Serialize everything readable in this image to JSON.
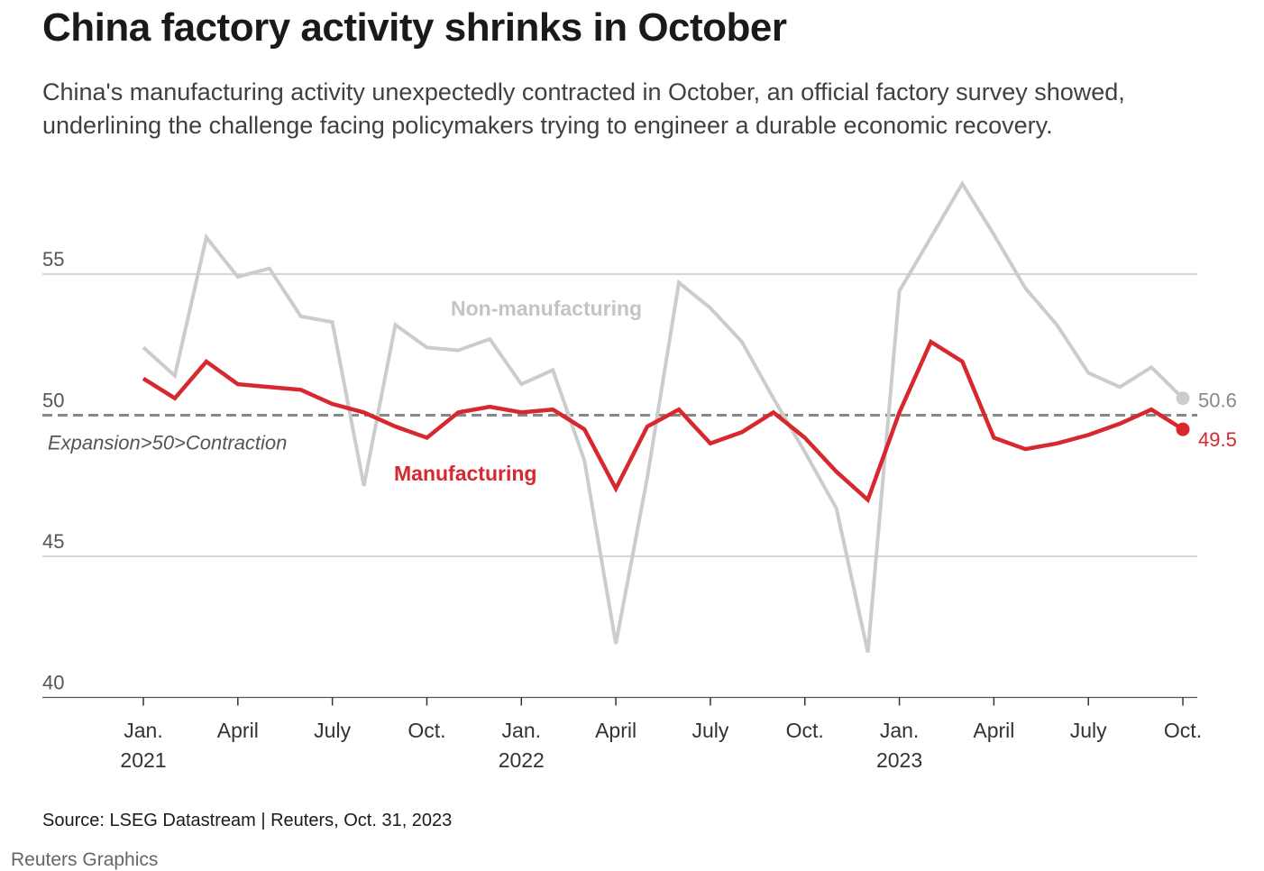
{
  "header": {
    "title": "China factory activity shrinks in October",
    "subtitle_lines": [
      "China's manufacturing activity unexpectedly contracted in October, an official factory survey showed,",
      "underlining the challenge facing policymakers trying to engineer a durable economic recovery."
    ]
  },
  "footer": {
    "source": "Source: LSEG Datastream | Reuters, Oct. 31, 2023",
    "credit": "Reuters Graphics"
  },
  "chart_data": {
    "type": "line",
    "title": "China factory activity shrinks in October",
    "x_labels": [
      "2021-01",
      "2021-02",
      "2021-03",
      "2021-04",
      "2021-05",
      "2021-06",
      "2021-07",
      "2021-08",
      "2021-09",
      "2021-10",
      "2021-11",
      "2021-12",
      "2022-01",
      "2022-02",
      "2022-03",
      "2022-04",
      "2022-05",
      "2022-06",
      "2022-07",
      "2022-08",
      "2022-09",
      "2022-10",
      "2022-11",
      "2022-12",
      "2023-01",
      "2023-02",
      "2023-03",
      "2023-04",
      "2023-05",
      "2023-06",
      "2023-07",
      "2023-08",
      "2023-09",
      "2023-10"
    ],
    "series": [
      {
        "name": "Non-manufacturing",
        "color": "#cccccc",
        "values": [
          52.4,
          51.4,
          56.3,
          54.9,
          55.2,
          53.5,
          53.3,
          47.5,
          53.2,
          52.4,
          52.3,
          52.7,
          51.1,
          51.6,
          48.4,
          41.9,
          47.8,
          54.7,
          53.8,
          52.6,
          50.6,
          48.7,
          46.7,
          41.6,
          54.4,
          56.3,
          58.2,
          56.4,
          54.5,
          53.2,
          51.5,
          51.0,
          51.7,
          50.6
        ],
        "end_label": "50.6"
      },
      {
        "name": "Manufacturing",
        "color": "#d7282f",
        "values": [
          51.3,
          50.6,
          51.9,
          51.1,
          51.0,
          50.9,
          50.4,
          50.1,
          49.6,
          49.2,
          50.1,
          50.3,
          50.1,
          50.2,
          49.5,
          47.4,
          49.6,
          50.2,
          49.0,
          49.4,
          50.1,
          49.2,
          48.0,
          47.0,
          50.1,
          52.6,
          51.9,
          49.2,
          48.8,
          49.0,
          49.3,
          49.7,
          50.2,
          49.5
        ],
        "end_label": "49.5"
      }
    ],
    "ylim": [
      40,
      58
    ],
    "y_ticks": [
      "40",
      "45",
      "50",
      "55"
    ],
    "x_ticks": [
      {
        "month": "2021-01",
        "label": "Jan.",
        "year": "2021"
      },
      {
        "month": "2021-04",
        "label": "April",
        "year": ""
      },
      {
        "month": "2021-07",
        "label": "July",
        "year": ""
      },
      {
        "month": "2021-10",
        "label": "Oct.",
        "year": ""
      },
      {
        "month": "2022-01",
        "label": "Jan.",
        "year": "2022"
      },
      {
        "month": "2022-04",
        "label": "April",
        "year": ""
      },
      {
        "month": "2022-07",
        "label": "July",
        "year": ""
      },
      {
        "month": "2022-10",
        "label": "Oct.",
        "year": ""
      },
      {
        "month": "2023-01",
        "label": "Jan.",
        "year": "2023"
      },
      {
        "month": "2023-04",
        "label": "April",
        "year": ""
      },
      {
        "month": "2023-07",
        "label": "July",
        "year": ""
      },
      {
        "month": "2023-10",
        "label": "Oct.",
        "year": ""
      }
    ],
    "reference_line": {
      "value": 50,
      "label": "Expansion>50>Contraction",
      "style": "dashed"
    },
    "grid": true,
    "series_labels": {
      "non_manufacturing": "Non-manufacturing",
      "manufacturing": "Manufacturing"
    }
  }
}
